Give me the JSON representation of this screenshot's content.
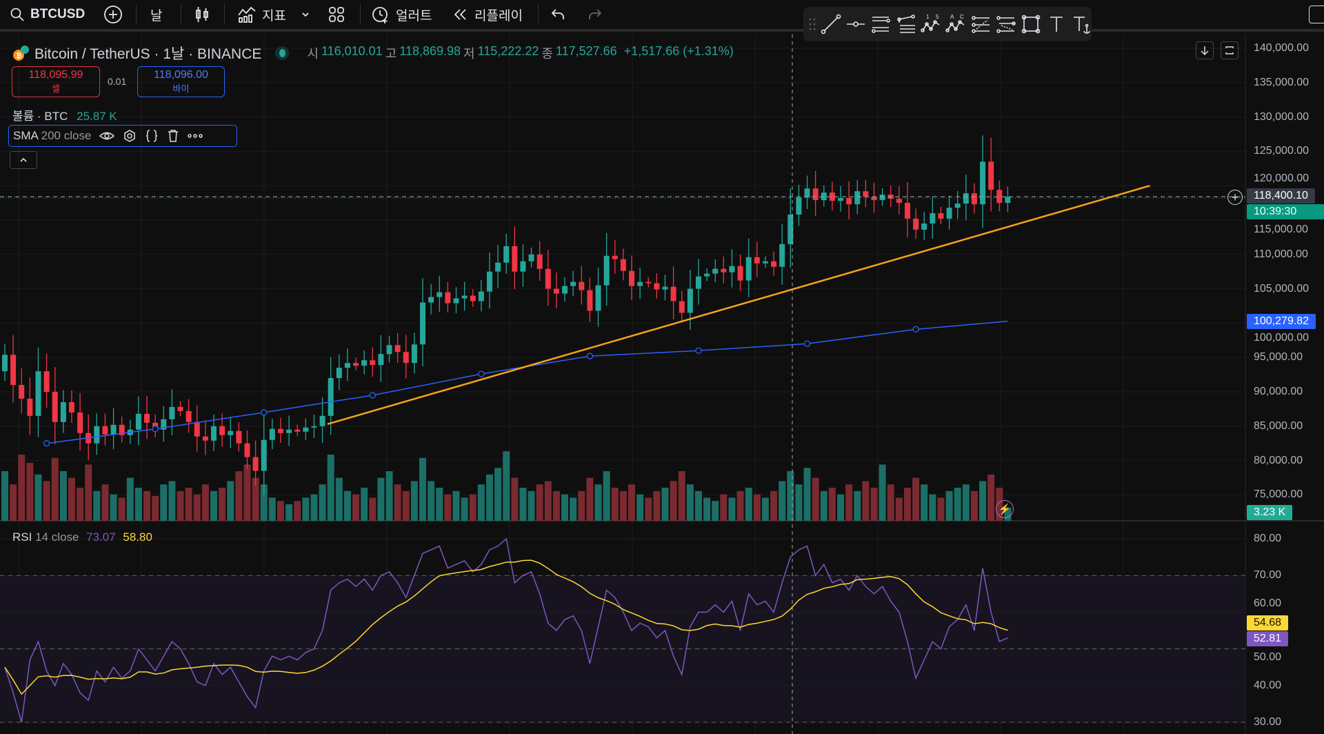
{
  "toolbar": {
    "symbol": "BTCUSD",
    "interval": "날",
    "indicators": "지표",
    "alert": "얼러트",
    "replay": "리플레이"
  },
  "legend": {
    "title": "Bitcoin / TetherUS · 1날 · BINANCE",
    "o_label": "시",
    "o": "116,010.01",
    "h_label": "고",
    "h": "118,869.98",
    "l_label": "저",
    "l": "115,222.22",
    "c_label": "종",
    "c": "117,527.66",
    "change": "+1,517.66 (+1.31%)"
  },
  "trade": {
    "sell_price": "118,095.99",
    "sell_label": "셀",
    "spread": "0.01",
    "buy_price": "118,096.00",
    "buy_label": "바이"
  },
  "volume_legend": {
    "label": "볼륨 · BTC",
    "value": "25.87 K"
  },
  "sma_legend": {
    "name": "SMA",
    "params": "200 close"
  },
  "rsi_legend": {
    "name": "RSI",
    "params": "14 close",
    "rsi": "73.07",
    "ma": "58.80"
  },
  "price_axis": [
    "140,000.00",
    "135,000.00",
    "130,000.00",
    "125,000.00",
    "120,000.00",
    "115,000.00",
    "110,000.00",
    "105,000.00",
    "100,000.00",
    "95,000.00",
    "90,000.00",
    "85,000.00",
    "80,000.00",
    "75,000.00"
  ],
  "rsi_axis": [
    "80.00",
    "70.00",
    "60.00",
    "50.00",
    "40.00",
    "30.00"
  ],
  "tags": {
    "last_price": "118,400.10",
    "countdown": "10:39:30",
    "sma": "100,279.82",
    "volume": "3.23 K",
    "rsi_ma": "54.68",
    "rsi": "52.81"
  },
  "colors": {
    "up": "#26a69a",
    "down": "#f23645",
    "sma": "#2962ff",
    "trendline": "#f7a21b",
    "rsi": "#7e57c2",
    "rsi_ma": "#fdd835",
    "background": "#0f0f0f"
  },
  "drawing_tools": [
    "trend-line",
    "horizontal-ray",
    "parallel-channel",
    "pitchfork",
    "elliott-wave",
    "abcd-pattern",
    "fib-retracement",
    "fib-extension",
    "rectangle",
    "text",
    "anchored-text"
  ],
  "chart_data": {
    "type": "candlestick",
    "price_range": [
      72000,
      142000
    ],
    "first_open": 93000,
    "close": [
      95400,
      91000,
      89000,
      86500,
      93000,
      90000,
      85600,
      88500,
      87000,
      84000,
      82500,
      85000,
      83800,
      85200,
      83700,
      84500,
      86800,
      85500,
      84500,
      86000,
      87800,
      87200,
      85600,
      83500,
      82900,
      85000,
      83700,
      84300,
      82500,
      80500,
      78500,
      83000,
      84600,
      84000,
      84500,
      84200,
      84800,
      85000,
      86500,
      92000,
      93500,
      94200,
      93800,
      94600,
      93900,
      95500,
      96800,
      95800,
      94200,
      96900,
      103000,
      103800,
      104500,
      102900,
      103600,
      104000,
      103200,
      104600,
      107500,
      108800,
      111200,
      107500,
      109000,
      110000,
      107900,
      105000,
      104300,
      105400,
      106000,
      104800,
      101800,
      105500,
      109800,
      109300,
      107600,
      105400,
      106000,
      105800,
      104900,
      105300,
      103200,
      101500,
      105000,
      106800,
      107200,
      107900,
      107400,
      108300,
      106200,
      109600,
      108700,
      109000,
      108200,
      111500,
      115800,
      118300,
      119600,
      117900,
      119000,
      117800,
      118200,
      117300,
      119200,
      118400,
      117900,
      118700,
      118100,
      117500,
      115200,
      113600,
      114500,
      116000,
      115200,
      116800,
      117400,
      118900,
      117300,
      123500,
      119400,
      117500,
      118400
    ],
    "volume_k": [
      30,
      22,
      40,
      35,
      28,
      24,
      38,
      30,
      26,
      20,
      34,
      18,
      22,
      16,
      14,
      26,
      20,
      18,
      15,
      22,
      24,
      18,
      20,
      16,
      22,
      18,
      20,
      24,
      30,
      34,
      26,
      22,
      14,
      12,
      10,
      12,
      14,
      16,
      22,
      40,
      26,
      18,
      16,
      20,
      14,
      26,
      30,
      22,
      18,
      24,
      38,
      24,
      20,
      16,
      18,
      14,
      16,
      22,
      28,
      32,
      42,
      26,
      20,
      18,
      22,
      24,
      18,
      16,
      14,
      18,
      26,
      22,
      30,
      20,
      18,
      22,
      16,
      14,
      18,
      20,
      24,
      30,
      22,
      18,
      14,
      12,
      16,
      14,
      18,
      20,
      16,
      14,
      18,
      24,
      30,
      22,
      32,
      26,
      18,
      20,
      16,
      22,
      18,
      24,
      20,
      34,
      22,
      14,
      20,
      26,
      22,
      16,
      14,
      18,
      20,
      22,
      18,
      24,
      28,
      20,
      8
    ],
    "sma200": [
      [
        5,
        82500
      ],
      [
        18,
        84600
      ],
      [
        31,
        87000
      ],
      [
        44,
        89500
      ],
      [
        57,
        92600
      ],
      [
        70,
        95200
      ],
      [
        83,
        96000
      ],
      [
        96,
        97000
      ],
      [
        109,
        99100
      ],
      [
        120,
        100280
      ]
    ],
    "trendline": [
      [
        38.6,
        85300
      ],
      [
        137,
        120000
      ]
    ],
    "last_price": 118400.1,
    "rsi_range": [
      28,
      83
    ],
    "rsi_levels": [
      70,
      50,
      30
    ],
    "rsi": [
      45,
      38,
      30,
      47,
      52,
      44,
      40,
      46,
      43,
      38,
      36,
      44,
      41,
      45,
      42,
      44,
      50,
      47,
      44,
      48,
      52,
      50,
      46,
      41,
      40,
      46,
      43,
      45,
      41,
      37,
      34,
      44,
      48,
      47,
      48,
      47,
      49,
      50,
      55,
      66,
      68,
      69,
      67,
      69,
      66,
      70,
      71,
      68,
      64,
      70,
      76,
      77,
      78,
      72,
      73,
      74,
      71,
      73,
      77,
      78,
      80,
      68,
      70,
      71,
      65,
      57,
      55,
      58,
      59,
      55,
      46,
      56,
      66,
      64,
      60,
      55,
      57,
      56,
      53,
      55,
      48,
      43,
      56,
      60,
      60,
      62,
      60,
      63,
      55,
      65,
      62,
      63,
      60,
      68,
      75,
      77,
      78,
      70,
      73,
      68,
      69,
      66,
      70,
      67,
      65,
      67,
      63,
      60,
      52,
      42,
      47,
      52,
      50,
      56,
      58,
      62,
      55,
      72,
      60,
      52,
      53
    ],
    "rsi_ma_length": 14
  }
}
